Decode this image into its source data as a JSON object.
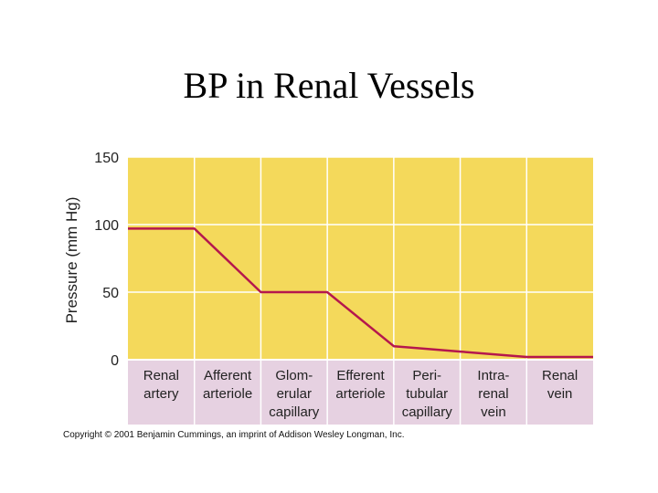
{
  "slide": {
    "title": "BP in Renal Vessels",
    "copyright": "Copyright © 2001 Benjamin Cummings, an imprint of Addison Wesley Longman, Inc."
  },
  "colors": {
    "plot_bg": "#f4d95b",
    "label_bg": "#e6d1e1",
    "line": "#b5174d",
    "grid": "#ffffff"
  },
  "chart_data": {
    "type": "line",
    "title": "BP in Renal Vessels",
    "xlabel": "",
    "ylabel": "Pressure (mm Hg)",
    "ylim": [
      0,
      150
    ],
    "yticks": [
      0,
      50,
      100,
      150
    ],
    "grid": true,
    "categories": [
      [
        "Renal",
        "artery"
      ],
      [
        "Afferent",
        "arteriole"
      ],
      [
        "Glom-",
        "erular",
        "capillary"
      ],
      [
        "Efferent",
        "arteriole"
      ],
      [
        "Peri-",
        "tubular",
        "capillary"
      ],
      [
        "Intra-",
        "renal",
        "vein"
      ],
      [
        "Renal",
        "vein"
      ]
    ],
    "series": [
      {
        "name": "Pressure",
        "x": [
          0,
          1,
          2,
          3,
          4,
          5,
          6,
          7
        ],
        "values": [
          97,
          97,
          50,
          50,
          10,
          6,
          2,
          2
        ]
      }
    ]
  }
}
